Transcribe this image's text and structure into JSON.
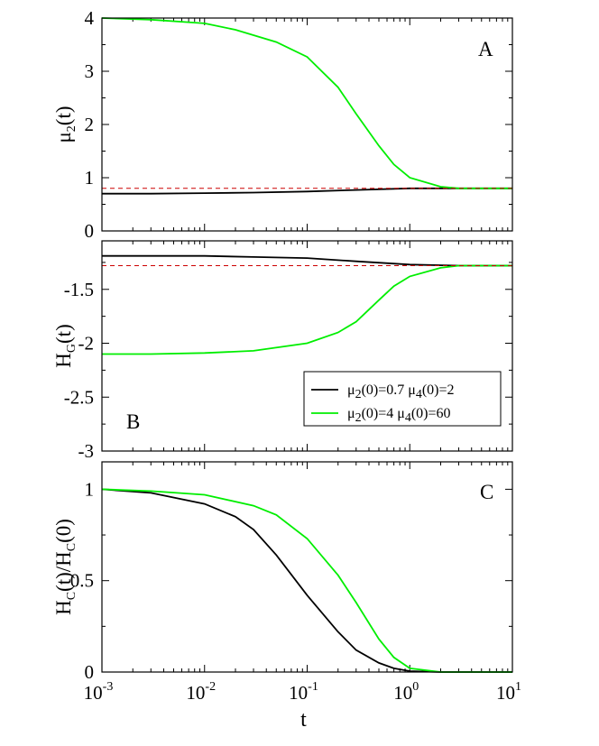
{
  "chart_data": [
    {
      "type": "line",
      "panel_label": "A",
      "ylabel": {
        "base": "μ",
        "sub": "2",
        "rest": "(t)"
      },
      "xscale": "log",
      "xlim": [
        0.001,
        10
      ],
      "ylim": [
        0,
        4
      ],
      "yticks": [
        0,
        1,
        2,
        3,
        4
      ],
      "ytick_labels": [
        "0",
        "1",
        "2",
        "3",
        "4"
      ],
      "series": [
        {
          "color": "#000000",
          "style": "solid",
          "x": [
            0.001,
            0.003,
            0.01,
            0.03,
            0.1,
            0.3,
            1,
            3,
            10
          ],
          "y": [
            0.7,
            0.7,
            0.71,
            0.72,
            0.74,
            0.77,
            0.8,
            0.8,
            0.8
          ]
        },
        {
          "color": "#00ee00",
          "style": "solid",
          "x": [
            0.001,
            0.003,
            0.01,
            0.02,
            0.05,
            0.1,
            0.2,
            0.3,
            0.5,
            0.7,
            1,
            2,
            3,
            10
          ],
          "y": [
            4.0,
            3.97,
            3.9,
            3.78,
            3.55,
            3.27,
            2.7,
            2.2,
            1.6,
            1.25,
            1.0,
            0.83,
            0.8,
            0.8
          ]
        },
        {
          "color": "#cc0000",
          "style": "dashed",
          "x": [
            0.001,
            10
          ],
          "y": [
            0.8,
            0.8
          ]
        }
      ]
    },
    {
      "type": "line",
      "panel_label": "B",
      "ylabel": {
        "base": "H",
        "sub": "G",
        "rest": "(t)"
      },
      "xscale": "log",
      "xlim": [
        0.001,
        10
      ],
      "ylim": [
        -3,
        -1.05
      ],
      "yticks": [
        -3,
        -2.5,
        -2,
        -1.5
      ],
      "ytick_labels": [
        "-3",
        "-2.5",
        "-2",
        "-1.5"
      ],
      "series": [
        {
          "color": "#000000",
          "style": "solid",
          "x": [
            0.001,
            0.01,
            0.03,
            0.1,
            0.3,
            1,
            3,
            10
          ],
          "y": [
            -1.19,
            -1.19,
            -1.2,
            -1.21,
            -1.24,
            -1.27,
            -1.28,
            -1.28
          ]
        },
        {
          "color": "#00ee00",
          "style": "solid",
          "x": [
            0.001,
            0.003,
            0.01,
            0.03,
            0.1,
            0.2,
            0.3,
            0.5,
            0.7,
            1,
            2,
            3,
            10
          ],
          "y": [
            -2.1,
            -2.1,
            -2.09,
            -2.07,
            -2.0,
            -1.9,
            -1.8,
            -1.6,
            -1.47,
            -1.38,
            -1.3,
            -1.28,
            -1.28
          ]
        },
        {
          "color": "#cc0000",
          "style": "dashed",
          "x": [
            0.001,
            10
          ],
          "y": [
            -1.28,
            -1.28
          ]
        }
      ],
      "legend": {
        "position": "lower-right",
        "entries": [
          {
            "color": "#000000",
            "parts": [
              [
                "μ",
                ""
              ],
              [
                "2",
                "sub"
              ],
              [
                "(0)=0.7  μ",
                ""
              ],
              [
                "4",
                "sub"
              ],
              [
                "(0)=2",
                ""
              ]
            ]
          },
          {
            "color": "#00ee00",
            "parts": [
              [
                "μ",
                ""
              ],
              [
                "2",
                "sub"
              ],
              [
                "(0)=4  μ",
                ""
              ],
              [
                "4",
                "sub"
              ],
              [
                "(0)=60",
                ""
              ]
            ]
          }
        ]
      }
    },
    {
      "type": "line",
      "panel_label": "C",
      "ylabel": {
        "base": "H",
        "sub": "C",
        "rest": "(t)/H",
        "sub2": "C",
        "rest2": "(0)"
      },
      "xlabel": "t",
      "xscale": "log",
      "xlim": [
        0.001,
        10
      ],
      "ylim": [
        0,
        1.15
      ],
      "yticks": [
        0,
        0.5,
        1
      ],
      "ytick_labels": [
        "0",
        "0.5",
        "1"
      ],
      "xtick_labels": [
        {
          "base": "10",
          "exp": "-3"
        },
        {
          "base": "10",
          "exp": "-2"
        },
        {
          "base": "10",
          "exp": "-1"
        },
        {
          "base": "10",
          "exp": "0"
        },
        {
          "base": "10",
          "exp": "1"
        }
      ],
      "series": [
        {
          "color": "#000000",
          "style": "solid",
          "x": [
            0.001,
            0.003,
            0.01,
            0.02,
            0.03,
            0.05,
            0.1,
            0.2,
            0.3,
            0.5,
            0.7,
            1,
            2,
            10
          ],
          "y": [
            1.0,
            0.98,
            0.92,
            0.85,
            0.78,
            0.64,
            0.42,
            0.22,
            0.12,
            0.05,
            0.02,
            0.005,
            0.0,
            0.0
          ]
        },
        {
          "color": "#00ee00",
          "style": "solid",
          "x": [
            0.001,
            0.003,
            0.01,
            0.03,
            0.05,
            0.1,
            0.2,
            0.3,
            0.5,
            0.7,
            1,
            2,
            10
          ],
          "y": [
            1.0,
            0.99,
            0.97,
            0.91,
            0.86,
            0.73,
            0.53,
            0.38,
            0.18,
            0.08,
            0.02,
            0.0,
            0.0
          ]
        }
      ]
    }
  ]
}
